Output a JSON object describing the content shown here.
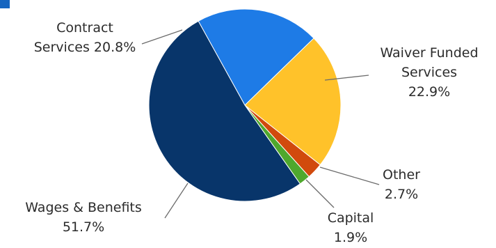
{
  "chart_data": {
    "type": "pie",
    "title": "",
    "start_angle_deg": 331,
    "direction": "clockwise",
    "slices": [
      {
        "name": "Contract Services",
        "value": 20.8,
        "color": "#1e7be6",
        "label_lines": [
          "Contract",
          "Services 20.8%"
        ]
      },
      {
        "name": "Waiver Funded Services",
        "value": 22.9,
        "color": "#ffc22a",
        "label_lines": [
          "Waiver Funded",
          "Services",
          "22.9%"
        ]
      },
      {
        "name": "Other",
        "value": 2.7,
        "color": "#d14a0d",
        "label_lines": [
          "Other",
          "2.7%"
        ]
      },
      {
        "name": "Capital",
        "value": 1.9,
        "color": "#4fa82d",
        "label_lines": [
          "Capital",
          "1.9%"
        ]
      },
      {
        "name": "Wages & Benefits",
        "value": 51.7,
        "color": "#08356a",
        "label_lines": [
          "Wages & Benefits",
          "51.7%"
        ]
      }
    ],
    "legend": "none",
    "accent_color": "#1565c0"
  }
}
